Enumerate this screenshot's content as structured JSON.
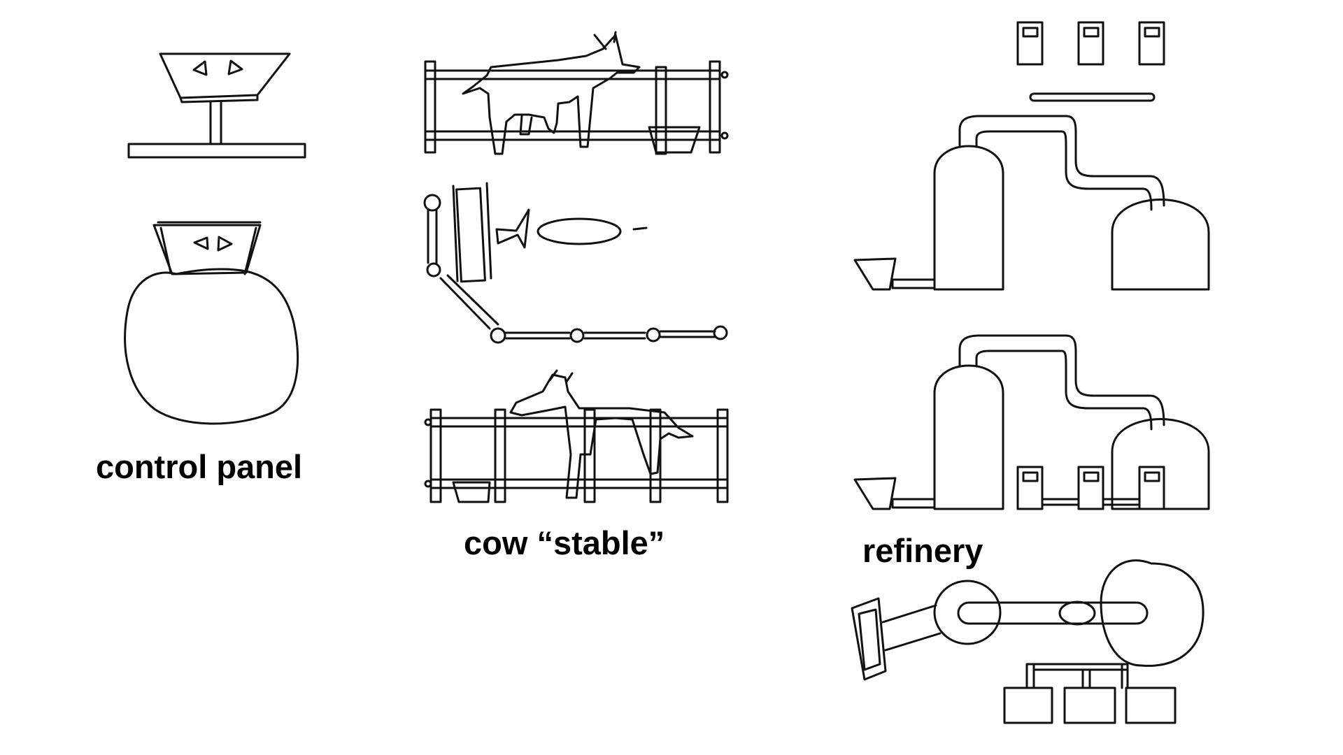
{
  "captions": {
    "control_panel": "control panel",
    "cow_stable": "cow “stable”",
    "refinery": "refinery"
  },
  "colors": {
    "ink": "#111111",
    "background": "#ffffff"
  }
}
